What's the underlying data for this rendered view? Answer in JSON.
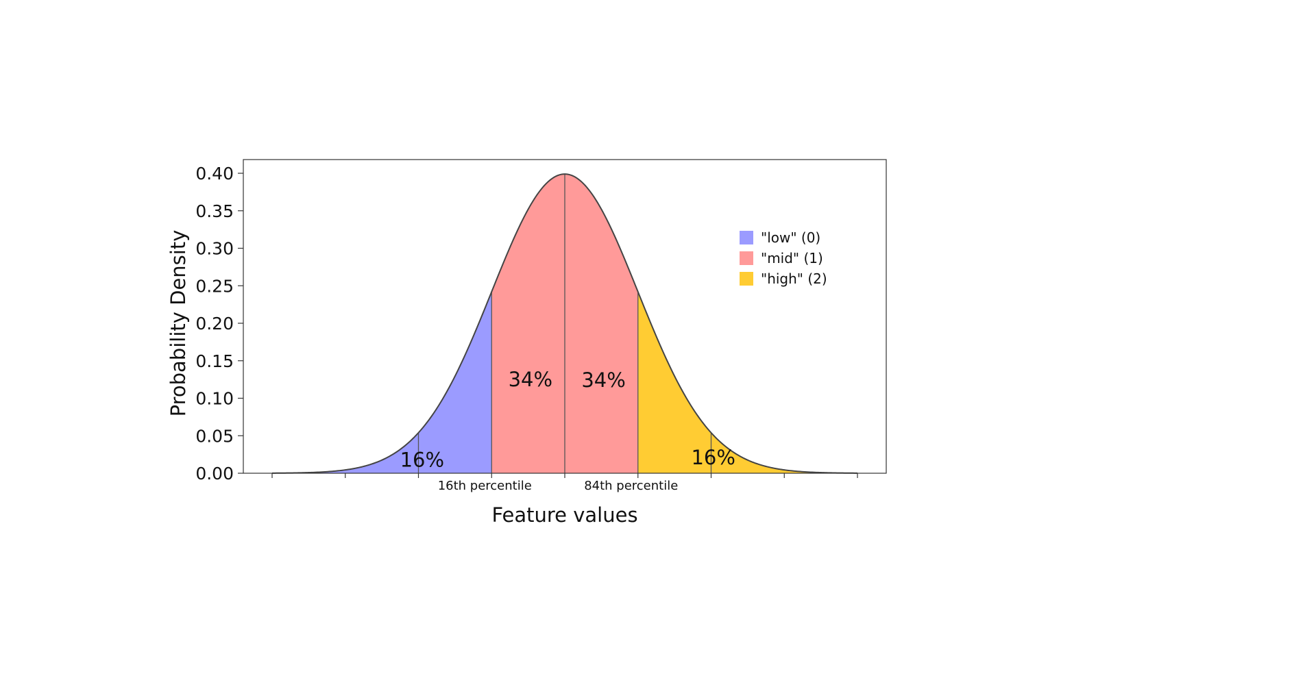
{
  "chart_data": {
    "type": "area",
    "title": "",
    "xlabel": "Feature values",
    "ylabel": "Probability Density",
    "xlim": [
      -4,
      4
    ],
    "ylim": [
      0,
      0.4
    ],
    "y_ticks": [
      "0.00",
      "0.05",
      "0.10",
      "0.15",
      "0.20",
      "0.25",
      "0.30",
      "0.35",
      "0.40"
    ],
    "x_ticks": [
      -4,
      -3,
      -2,
      -1,
      0,
      1,
      2,
      3,
      4
    ],
    "x_tick_labels_shown": false,
    "grid": false,
    "legend_position": "top-right",
    "curve": {
      "distribution": "standard normal",
      "mean": 0,
      "std": 1,
      "peak_density": 0.399
    },
    "regions": [
      {
        "name": "\"low\" (0)",
        "from": -4,
        "to": -1,
        "color": "#9B9BFF"
      },
      {
        "name": "\"mid\" (1)",
        "from": -1,
        "to": 1,
        "color": "#FF9A99"
      },
      {
        "name": "\"high\" (2)",
        "from": 1,
        "to": 4,
        "color": "#FFCC33"
      }
    ],
    "vertical_lines": [
      -2,
      -1,
      0,
      1,
      2
    ],
    "annotations": [
      {
        "text": "16%",
        "x": -1.95,
        "y": 0.018
      },
      {
        "text": "34%",
        "x": -0.47,
        "y": 0.125
      },
      {
        "text": "34%",
        "x": 0.53,
        "y": 0.124
      },
      {
        "text": "16%",
        "x": 2.03,
        "y": 0.021
      }
    ],
    "percentile_labels": [
      {
        "text": "16th percentile",
        "x": -1
      },
      {
        "text": "84th percentile",
        "x": 1
      }
    ]
  }
}
